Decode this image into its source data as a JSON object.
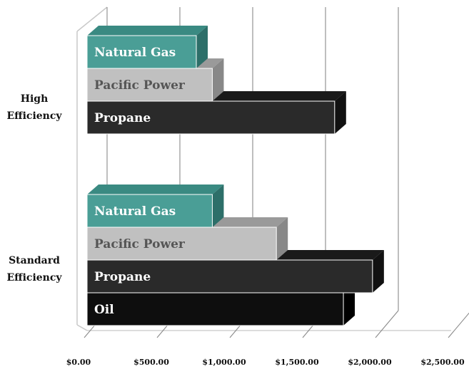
{
  "chart_data": {
    "type": "bar",
    "orientation": "horizontal",
    "three_d": true,
    "grid": true,
    "legend": "none",
    "categories": [
      "High Efficiency",
      "Standard Efficiency"
    ],
    "category_label_lines": [
      [
        "High",
        "Efficiency"
      ],
      [
        "Standard",
        "Efficiency"
      ]
    ],
    "xlim": [
      0,
      2500
    ],
    "x_ticks": [
      0,
      500,
      1000,
      1500,
      2000,
      2500
    ],
    "x_tick_labels": [
      "$0.00",
      "$500.00",
      "$1,000.00",
      "$1,500.00",
      "$2,000.00",
      "$2,500.00"
    ],
    "groups": [
      {
        "category": "High Efficiency",
        "bars": [
          {
            "name": "Natural Gas",
            "value": 750
          },
          {
            "name": "Pacific Power",
            "value": 860
          },
          {
            "name": "Propane",
            "value": 1700
          }
        ]
      },
      {
        "category": "Standard Efficiency",
        "bars": [
          {
            "name": "Natural Gas",
            "value": 860
          },
          {
            "name": "Pacific Power",
            "value": 1300
          },
          {
            "name": "Propane",
            "value": 1960
          },
          {
            "name": "Oil",
            "value": 1760
          }
        ]
      }
    ],
    "series_colors": {
      "Natural Gas": {
        "front": "#4a9e96",
        "top": "#3a8a82",
        "side": "#2d6f69",
        "text": "#ffffff"
      },
      "Pacific Power": {
        "front": "#c0c0c0",
        "top": "#9a9a9a",
        "side": "#888888",
        "text": "#555555"
      },
      "Propane": {
        "front": "#2a2a2a",
        "top": "#1a1a1a",
        "side": "#111111",
        "text": "#ffffff"
      },
      "Oil": {
        "front": "#0e0e0e",
        "top": "#050505",
        "side": "#000000",
        "text": "#ffffff"
      }
    }
  }
}
